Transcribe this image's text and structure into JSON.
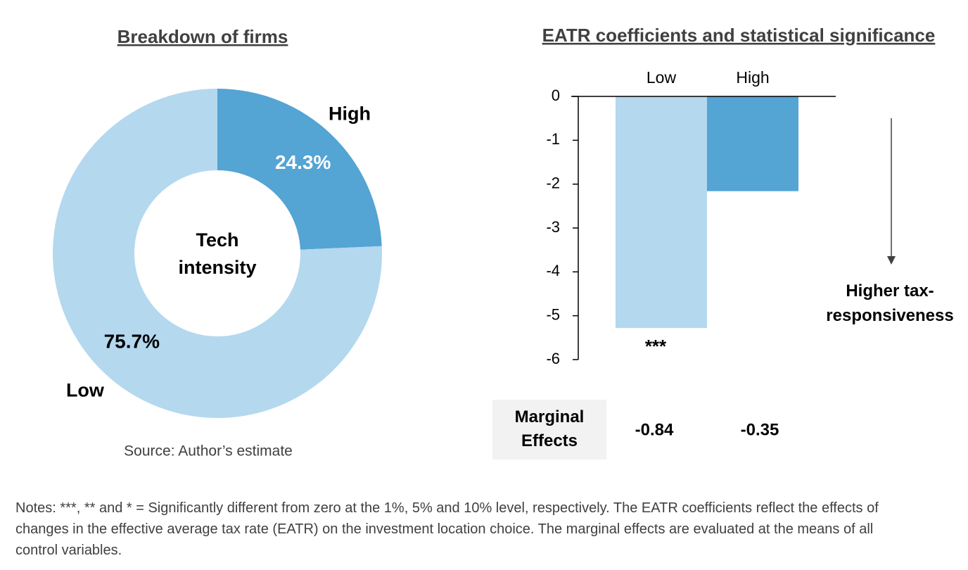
{
  "chart_data": [
    {
      "type": "donut",
      "title": "Breakdown of firms",
      "center_label": "Tech intensity",
      "categories": [
        "High",
        "Low"
      ],
      "values": [
        24.3,
        75.7
      ],
      "value_labels": [
        "24.3%",
        "75.7%"
      ],
      "colors": [
        "#54a4d4",
        "#b4d8ee"
      ],
      "source": "Source: Author’s estimate"
    },
    {
      "type": "bar",
      "title": "EATR coefficients and statistical significance",
      "categories": [
        "Low",
        "High"
      ],
      "values": [
        -5.28,
        -2.16
      ],
      "colors": [
        "#b4d8ee",
        "#54a4d4"
      ],
      "significance": [
        "***",
        null
      ],
      "ylim": [
        -6,
        0
      ],
      "yticks": [
        0,
        -1,
        -2,
        -3,
        -4,
        -5,
        -6
      ],
      "annotation": "Higher tax-responsiveness",
      "marginal_effects": {
        "label": "Marginal Effects",
        "values": [
          -0.84,
          -0.35
        ]
      }
    }
  ],
  "notes": "Notes: ***, ** and * = Significantly different from zero at the 1%, 5% and 10% level, respectively.  The EATR coefficients reflect the effects of changes in the effective average tax rate (EATR) on the investment location choice. The marginal effects are evaluated at the means of all control variables."
}
